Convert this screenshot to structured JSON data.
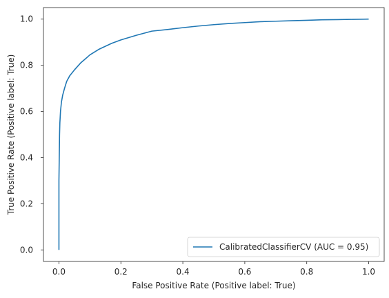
{
  "chart_data": {
    "type": "line",
    "title": "",
    "xlabel": "False Positive Rate (Positive label: True)",
    "ylabel": "True Positive Rate (Positive label: True)",
    "xlim": [
      -0.05,
      1.05
    ],
    "ylim": [
      -0.05,
      1.05
    ],
    "xticks": [
      0.0,
      0.2,
      0.4,
      0.6,
      0.8,
      1.0
    ],
    "yticks": [
      0.0,
      0.2,
      0.4,
      0.6,
      0.8,
      1.0
    ],
    "xtick_labels": [
      "0.0",
      "0.2",
      "0.4",
      "0.6",
      "0.8",
      "1.0"
    ],
    "ytick_labels": [
      "0.0",
      "0.2",
      "0.4",
      "0.6",
      "0.8",
      "1.0"
    ],
    "grid": false,
    "legend_position": "lower-right",
    "series": [
      {
        "name": "CalibratedClassifierCV (AUC = 0.95)",
        "color": "#1f77b4",
        "x": [
          0.0,
          0.0,
          0.0,
          0.001,
          0.002,
          0.003,
          0.005,
          0.008,
          0.012,
          0.018,
          0.025,
          0.035,
          0.05,
          0.07,
          0.1,
          0.13,
          0.17,
          0.2,
          0.25,
          0.3,
          0.35,
          0.4,
          0.45,
          0.5,
          0.55,
          0.6,
          0.65,
          0.7,
          0.75,
          0.8,
          0.85,
          0.9,
          0.95,
          1.0
        ],
        "y": [
          0.0,
          0.15,
          0.3,
          0.4,
          0.5,
          0.55,
          0.6,
          0.64,
          0.67,
          0.7,
          0.73,
          0.755,
          0.78,
          0.81,
          0.845,
          0.87,
          0.895,
          0.91,
          0.93,
          0.948,
          0.955,
          0.963,
          0.97,
          0.976,
          0.981,
          0.985,
          0.989,
          0.991,
          0.993,
          0.995,
          0.997,
          0.998,
          0.999,
          1.0
        ]
      }
    ]
  }
}
